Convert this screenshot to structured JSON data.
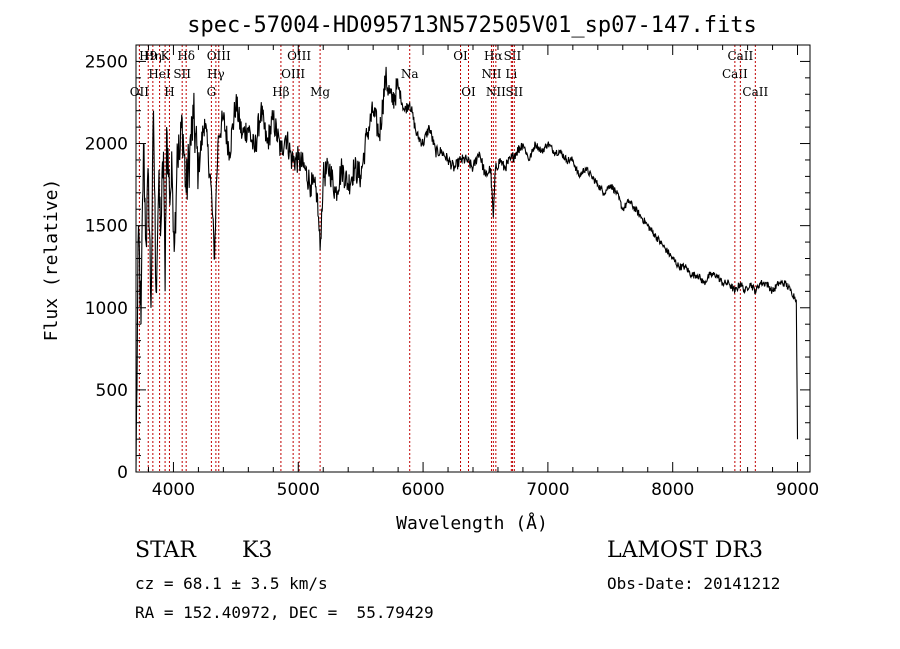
{
  "chart_data": {
    "type": "line",
    "title": "spec-57004-HD095713N572505V01_sp07-147.fits",
    "xlabel": "Wavelength (Å)",
    "ylabel": "Flux (relative)",
    "xlim": [
      3700,
      9100
    ],
    "ylim": [
      0,
      2600
    ],
    "xticks": [
      4000,
      5000,
      6000,
      7000,
      8000,
      9000
    ],
    "yticks": [
      0,
      500,
      1000,
      1500,
      2000,
      2500
    ],
    "grid": false,
    "colors": {
      "spectrum": "#000000",
      "line_markers": "#c00000"
    },
    "series": [
      {
        "values_x": [
          3700,
          3720,
          3740,
          3760,
          3780,
          3800,
          3820,
          3840,
          3860,
          3880,
          3900,
          3920,
          3933,
          3945,
          3968,
          3990,
          4010,
          4030,
          4050,
          4070,
          4102,
          4130,
          4160,
          4200,
          4250,
          4300,
          4330,
          4340,
          4360,
          4400,
          4450,
          4500,
          4550,
          4600,
          4650,
          4700,
          4750,
          4800,
          4861,
          4900,
          4950,
          5000,
          5050,
          5100,
          5150,
          5175,
          5200,
          5250,
          5300,
          5350,
          5400,
          5450,
          5500,
          5550,
          5600,
          5650,
          5700,
          5750,
          5800,
          5850,
          5893,
          5950,
          6000,
          6050,
          6100,
          6150,
          6200,
          6250,
          6300,
          6350,
          6400,
          6450,
          6500,
          6540,
          6563,
          6580,
          6620,
          6650,
          6700,
          6750,
          6800,
          6850,
          6900,
          6950,
          7000,
          7050,
          7100,
          7150,
          7200,
          7250,
          7300,
          7350,
          7400,
          7450,
          7500,
          7550,
          7600,
          7650,
          7700,
          7750,
          7800,
          7850,
          7900,
          7950,
          8000,
          8050,
          8100,
          8150,
          8200,
          8250,
          8300,
          8350,
          8400,
          8450,
          8500,
          8542,
          8580,
          8620,
          8662,
          8700,
          8750,
          8800,
          8850,
          8900,
          8950,
          8990,
          9000
        ],
        "values_y": [
          0,
          1500,
          900,
          2000,
          1400,
          1800,
          1000,
          2200,
          1100,
          1700,
          1500,
          1950,
          1100,
          2100,
          1700,
          1800,
          1400,
          2000,
          1900,
          2150,
          1700,
          1950,
          2150,
          1850,
          2150,
          1750,
          1300,
          1650,
          2050,
          2150,
          1950,
          2250,
          2050,
          2100,
          1950,
          2200,
          2000,
          2150,
          1950,
          2050,
          1900,
          1900,
          1850,
          1750,
          1700,
          1350,
          1800,
          1850,
          1700,
          1850,
          1750,
          1850,
          1800,
          2050,
          2200,
          2050,
          2400,
          2250,
          2350,
          2200,
          2250,
          2050,
          2000,
          2100,
          1950,
          1950,
          1900,
          1850,
          1900,
          1900,
          1850,
          1950,
          1800,
          1850,
          1550,
          1850,
          1900,
          1850,
          1900,
          1950,
          2000,
          1900,
          2000,
          1950,
          2000,
          1950,
          1950,
          1900,
          1900,
          1800,
          1850,
          1800,
          1750,
          1700,
          1750,
          1700,
          1600,
          1650,
          1600,
          1550,
          1500,
          1450,
          1400,
          1350,
          1300,
          1250,
          1250,
          1200,
          1200,
          1150,
          1200,
          1200,
          1150,
          1150,
          1100,
          1150,
          1100,
          1150,
          1100,
          1150,
          1150,
          1100,
          1150,
          1150,
          1100,
          1050,
          200
        ]
      }
    ],
    "line_markers": [
      {
        "wavelength": 3727,
        "labels": [
          "OII"
        ],
        "row": 2
      },
      {
        "wavelength": 3798,
        "labels": [
          "H9"
        ],
        "row": 0
      },
      {
        "wavelength": 3835,
        "labels": [
          "Hη"
        ],
        "row": 0
      },
      {
        "wavelength": 3889,
        "labels": [
          "HeI"
        ],
        "row": 1
      },
      {
        "wavelength": 3933,
        "labels": [
          "K"
        ],
        "row": 0
      },
      {
        "wavelength": 3968,
        "labels": [
          "H"
        ],
        "row": 2
      },
      {
        "wavelength": 4102,
        "labels": [
          "Hδ"
        ],
        "row": 0
      },
      {
        "wavelength": 4070,
        "labels": [
          "SII"
        ],
        "row": 1
      },
      {
        "wavelength": 4304,
        "labels": [
          "G"
        ],
        "row": 2
      },
      {
        "wavelength": 4340,
        "labels": [
          "Hγ"
        ],
        "row": 1
      },
      {
        "wavelength": 4363,
        "labels": [
          "OIII"
        ],
        "row": 0
      },
      {
        "wavelength": 4861,
        "labels": [
          "Hβ"
        ],
        "row": 2
      },
      {
        "wavelength": 4959,
        "labels": [
          "OIII"
        ],
        "row": 1
      },
      {
        "wavelength": 5007,
        "labels": [
          "OIII"
        ],
        "row": 0
      },
      {
        "wavelength": 5175,
        "labels": [
          "Mg"
        ],
        "row": 2
      },
      {
        "wavelength": 5893,
        "labels": [
          "Na"
        ],
        "row": 1
      },
      {
        "wavelength": 6300,
        "labels": [
          "OI"
        ],
        "row": 0
      },
      {
        "wavelength": 6364,
        "labels": [
          "OI"
        ],
        "row": 2
      },
      {
        "wavelength": 6548,
        "labels": [
          "NII"
        ],
        "row": 1
      },
      {
        "wavelength": 6563,
        "labels": [
          "Hα"
        ],
        "row": 0
      },
      {
        "wavelength": 6583,
        "labels": [
          "NII"
        ],
        "row": 2
      },
      {
        "wavelength": 6707,
        "labels": [
          "Li"
        ],
        "row": 1
      },
      {
        "wavelength": 6716,
        "labels": [
          "SII"
        ],
        "row": 0
      },
      {
        "wavelength": 6731,
        "labels": [
          "SII"
        ],
        "row": 2
      },
      {
        "wavelength": 8498,
        "labels": [
          "CaII"
        ],
        "row": 1
      },
      {
        "wavelength": 8542,
        "labels": [
          "CaII"
        ],
        "row": 0
      },
      {
        "wavelength": 8662,
        "labels": [
          "CaII"
        ],
        "row": 2
      }
    ]
  },
  "info": {
    "class_label": "STAR",
    "subclass": "K3",
    "survey": "LAMOST DR3",
    "redshift": "cz = 68.1 ± 3.5 km/s",
    "obs_date": "Obs-Date: 20141212",
    "coords": "RA = 152.40972, DEC =  55.79429"
  }
}
